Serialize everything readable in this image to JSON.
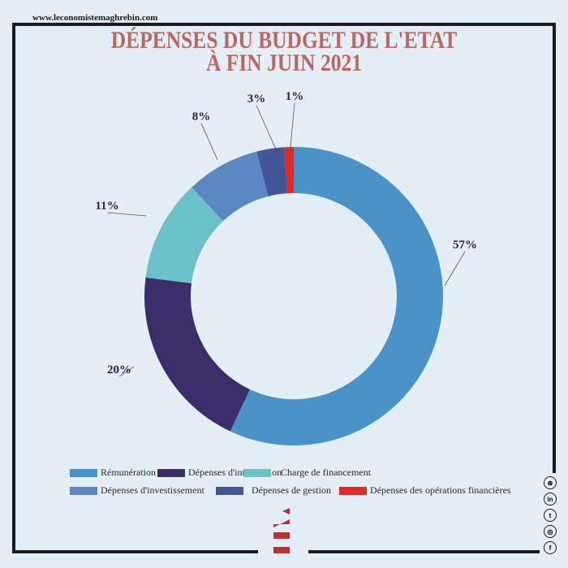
{
  "site": "www.leconomistemaghrebin.com",
  "title_line1": "DÉPENSES DU BUDGET DE L'ETAT",
  "title_line2": "À FIN JUIN 2021",
  "chart_data": {
    "type": "pie",
    "title": "DÉPENSES DU BUDGET DE L'ETAT À FIN JUIN 2021",
    "categories": [
      "Rémunération",
      "Dépenses d'intervention",
      "Charge de financement",
      "Dépenses d'investissement",
      "Dépenses de gestion",
      "Dépenses des opérations financières"
    ],
    "values": [
      57,
      20,
      11,
      8,
      3,
      1
    ],
    "labels": [
      "57%",
      "20%",
      "11%",
      "8%",
      "3%",
      "1%"
    ],
    "colors": [
      "#4a93c8",
      "#3a2d6a",
      "#6cc1c8",
      "#5a88c0",
      "#44569a",
      "#e02a2a"
    ],
    "legend_position": "bottom"
  },
  "social_icons": [
    "website-icon",
    "linkedin-icon",
    "twitter-icon",
    "instagram-icon",
    "facebook-icon"
  ]
}
